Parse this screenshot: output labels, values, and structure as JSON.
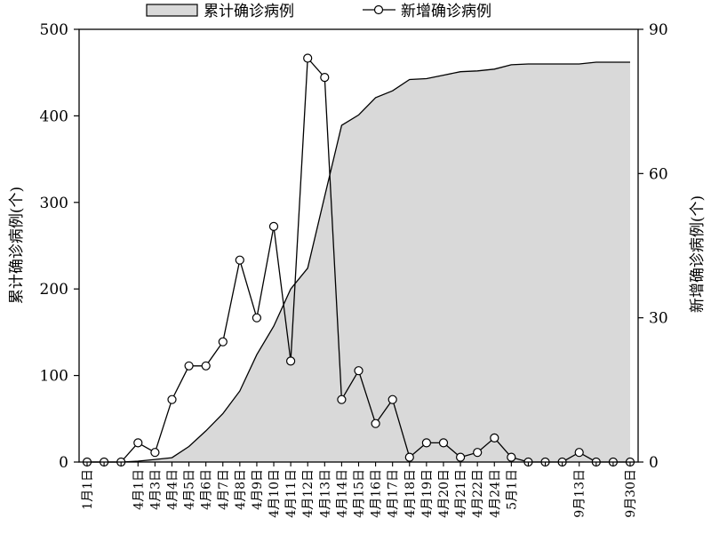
{
  "chart_data": {
    "type": "area+line",
    "categories": [
      "1月1日",
      "",
      "",
      "4月1日",
      "4月3日",
      "4月4日",
      "4月5日",
      "4月6日",
      "4月7日",
      "4月8日",
      "4月9日",
      "4月10日",
      "4月11日",
      "4月12日",
      "4月13日",
      "4月14日",
      "4月15日",
      "4月16日",
      "4月17日",
      "4月18日",
      "4月19日",
      "4月20日",
      "4月21日",
      "4月22日",
      "4月24日",
      "5月1日",
      "",
      "",
      "",
      "9月13日",
      "",
      "",
      "9月30日"
    ],
    "series": [
      {
        "name": "累计确诊病例",
        "type": "area",
        "axis": "left",
        "values": [
          0,
          0,
          0,
          1,
          3,
          5,
          18,
          36,
          56,
          82,
          124,
          157,
          200,
          224,
          307,
          389,
          401,
          421,
          429,
          442,
          443,
          447,
          451,
          452,
          454,
          459,
          460,
          460,
          460,
          460,
          462,
          462,
          462
        ]
      },
      {
        "name": "新增确诊病例",
        "type": "line",
        "axis": "right",
        "values": [
          0,
          0,
          0,
          4,
          2,
          13,
          20,
          20,
          25,
          42,
          30,
          49,
          21,
          84,
          80,
          13,
          19,
          8,
          13,
          1,
          4,
          4,
          1,
          2,
          5,
          1,
          0,
          0,
          0,
          2,
          0,
          0,
          0
        ]
      }
    ],
    "ylabel": "累计确诊病例(个)",
    "y2label": "新增确诊病例(个)",
    "ylim": [
      0,
      500
    ],
    "y2lim": [
      0,
      90
    ],
    "yticks": [
      "0",
      "100",
      "200",
      "300",
      "400",
      "500"
    ],
    "y2ticks": [
      "0",
      "30",
      "60",
      "90"
    ],
    "legend_position": "top",
    "colors": {
      "area_fill": "#d9d9d9",
      "line": "#000000",
      "marker_fill": "#ffffff"
    }
  }
}
